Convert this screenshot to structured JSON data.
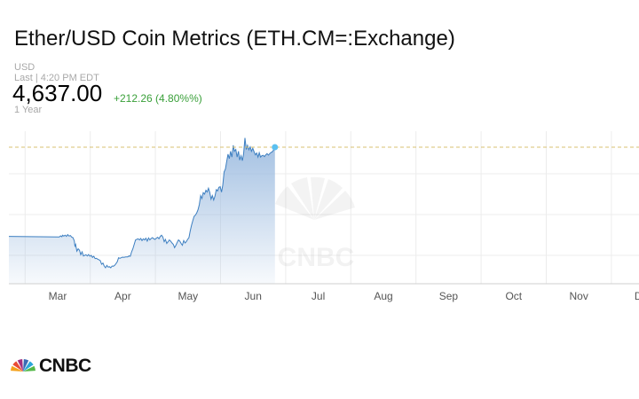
{
  "header": {
    "title": "Ether/USD Coin Metrics (ETH.CM=:Exchange)",
    "currency": "USD",
    "last_trade": "Last | 4:20 PM EDT",
    "price": "4,637.00",
    "change": "+212.26 (4.80%%)",
    "period": "1 Year",
    "change_color": "#3aa03a"
  },
  "chart_data": {
    "type": "area",
    "title": "",
    "xlabel": "",
    "ylabel": "",
    "x_ticks": [
      "Mar",
      "Apr",
      "May",
      "Jun",
      "Jul",
      "Aug",
      "Sep",
      "Oct",
      "Nov",
      "Dec"
    ],
    "grid": true,
    "line_color": "#3d7fc1",
    "reference_line": 4637.0,
    "series": [
      {
        "values": [
          [
            0.0,
            1620
          ],
          [
            0.03,
            1600
          ],
          [
            0.05,
            1640
          ],
          [
            0.07,
            1610
          ],
          [
            0.08,
            1660
          ],
          [
            0.1,
            1630
          ],
          [
            0.12,
            1660
          ],
          [
            0.14,
            1620
          ],
          [
            0.16,
            1680
          ],
          [
            0.18,
            1630
          ],
          [
            0.2,
            1650
          ],
          [
            0.22,
            1600
          ],
          [
            0.24,
            1580
          ],
          [
            0.26,
            1470
          ],
          [
            0.27,
            1300
          ],
          [
            0.28,
            1350
          ],
          [
            0.3,
            1120
          ],
          [
            0.32,
            1200
          ],
          [
            0.34,
            1150
          ],
          [
            0.36,
            1000
          ],
          [
            0.38,
            1100
          ],
          [
            0.4,
            960
          ],
          [
            0.42,
            980
          ],
          [
            0.44,
            1000
          ],
          [
            0.46,
            960
          ],
          [
            0.48,
            1010
          ],
          [
            0.5,
            950
          ],
          [
            0.52,
            980
          ],
          [
            0.54,
            910
          ],
          [
            0.56,
            950
          ],
          [
            0.58,
            870
          ],
          [
            0.6,
            880
          ],
          [
            0.62,
            850
          ],
          [
            0.64,
            830
          ],
          [
            0.66,
            800
          ],
          [
            0.68,
            680
          ],
          [
            0.7,
            720
          ],
          [
            0.72,
            620
          ],
          [
            0.74,
            560
          ],
          [
            0.76,
            640
          ],
          [
            0.78,
            580
          ],
          [
            0.8,
            600
          ],
          [
            0.82,
            560
          ],
          [
            0.84,
            620
          ],
          [
            0.86,
            610
          ],
          [
            0.88,
            640
          ],
          [
            0.9,
            700
          ],
          [
            0.92,
            760
          ],
          [
            0.94,
            900
          ],
          [
            0.96,
            880
          ],
          [
            0.98,
            900
          ],
          [
            1.0,
            920
          ],
          [
            1.02,
            910
          ],
          [
            1.05,
            925
          ],
          [
            1.08,
            930
          ],
          [
            1.1,
            960
          ],
          [
            1.12,
            950
          ],
          [
            1.14,
            1100
          ],
          [
            1.16,
            1200
          ],
          [
            1.18,
            1350
          ],
          [
            1.2,
            1500
          ],
          [
            1.22,
            1520
          ],
          [
            1.24,
            1540
          ],
          [
            1.26,
            1500
          ],
          [
            1.28,
            1550
          ],
          [
            1.3,
            1480
          ],
          [
            1.32,
            1540
          ],
          [
            1.34,
            1500
          ],
          [
            1.36,
            1560
          ],
          [
            1.38,
            1460
          ],
          [
            1.4,
            1570
          ],
          [
            1.42,
            1500
          ],
          [
            1.44,
            1550
          ],
          [
            1.46,
            1580
          ],
          [
            1.48,
            1540
          ],
          [
            1.5,
            1520
          ],
          [
            1.52,
            1560
          ],
          [
            1.54,
            1590
          ],
          [
            1.56,
            1540
          ],
          [
            1.58,
            1620
          ],
          [
            1.6,
            1660
          ],
          [
            1.62,
            1600
          ],
          [
            1.64,
            1440
          ],
          [
            1.66,
            1520
          ],
          [
            1.68,
            1380
          ],
          [
            1.7,
            1440
          ],
          [
            1.72,
            1500
          ],
          [
            1.74,
            1460
          ],
          [
            1.76,
            1400
          ],
          [
            1.78,
            1350
          ],
          [
            1.8,
            1240
          ],
          [
            1.82,
            1320
          ],
          [
            1.84,
            1420
          ],
          [
            1.86,
            1500
          ],
          [
            1.88,
            1460
          ],
          [
            1.9,
            1380
          ],
          [
            1.92,
            1320
          ],
          [
            1.94,
            1480
          ],
          [
            1.96,
            1400
          ],
          [
            1.98,
            1440
          ],
          [
            2.0,
            1520
          ],
          [
            2.02,
            1580
          ],
          [
            2.04,
            1800
          ],
          [
            2.06,
            2000
          ],
          [
            2.08,
            2160
          ],
          [
            2.1,
            2300
          ],
          [
            2.12,
            2340
          ],
          [
            2.14,
            2420
          ],
          [
            2.16,
            2520
          ],
          [
            2.18,
            2700
          ],
          [
            2.2,
            3000
          ],
          [
            2.22,
            2900
          ],
          [
            2.24,
            3100
          ],
          [
            2.26,
            3050
          ],
          [
            2.28,
            3180
          ],
          [
            2.3,
            3120
          ],
          [
            2.32,
            3250
          ],
          [
            2.34,
            3100
          ],
          [
            2.36,
            2880
          ],
          [
            2.38,
            3000
          ],
          [
            2.4,
            2850
          ],
          [
            2.42,
            2980
          ],
          [
            2.44,
            3200
          ],
          [
            2.46,
            3160
          ],
          [
            2.48,
            3280
          ],
          [
            2.5,
            3300
          ],
          [
            2.52,
            3120
          ],
          [
            2.54,
            3350
          ],
          [
            2.56,
            3800
          ],
          [
            2.58,
            3900
          ],
          [
            2.6,
            4150
          ],
          [
            2.62,
            4400
          ],
          [
            2.64,
            4250
          ],
          [
            2.66,
            4500
          ],
          [
            2.68,
            4300
          ],
          [
            2.7,
            4700
          ],
          [
            2.72,
            4500
          ],
          [
            2.74,
            4560
          ],
          [
            2.76,
            4300
          ],
          [
            2.78,
            4500
          ],
          [
            2.8,
            4200
          ],
          [
            2.82,
            4350
          ],
          [
            2.84,
            4180
          ],
          [
            2.86,
            4420
          ],
          [
            2.88,
            4950
          ],
          [
            2.9,
            4560
          ],
          [
            2.92,
            4700
          ],
          [
            2.94,
            4550
          ],
          [
            2.96,
            4650
          ],
          [
            2.98,
            4500
          ],
          [
            3.0,
            4600
          ],
          [
            3.02,
            4480
          ],
          [
            3.04,
            4380
          ],
          [
            3.06,
            4440
          ],
          [
            3.08,
            4300
          ],
          [
            3.1,
            4450
          ],
          [
            3.12,
            4300
          ],
          [
            3.14,
            4350
          ],
          [
            3.16,
            4360
          ],
          [
            3.18,
            4320
          ],
          [
            3.2,
            4380
          ],
          [
            3.22,
            4420
          ],
          [
            3.24,
            4370
          ],
          [
            3.26,
            4420
          ],
          [
            3.28,
            4460
          ],
          [
            3.3,
            4480
          ],
          [
            3.32,
            4540
          ],
          [
            3.34,
            4637
          ]
        ]
      }
    ]
  },
  "brand": {
    "logo_text": "CNBC",
    "watermark_text": "CNBC",
    "peacock_colors": [
      "#f4a11c",
      "#e94b35",
      "#a3307f",
      "#3b6bb5",
      "#2ba6d9",
      "#54b848"
    ]
  }
}
